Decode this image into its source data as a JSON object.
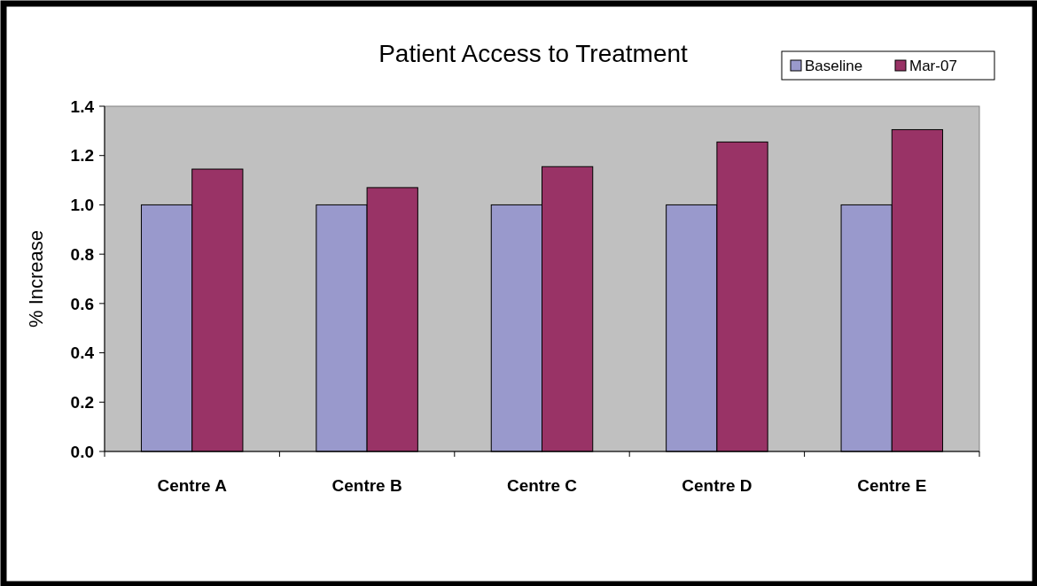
{
  "chart_data": {
    "type": "bar",
    "title": "Patient Access to Treatment",
    "ylabel": "% Increase",
    "categories": [
      "Centre A",
      "Centre B",
      "Centre C",
      "Centre D",
      "Centre E"
    ],
    "series": [
      {
        "name": "Baseline",
        "color": "#9999cc",
        "values": [
          1.0,
          1.0,
          1.0,
          1.0,
          1.0
        ]
      },
      {
        "name": "Mar-07",
        "color": "#993366",
        "values": [
          1.145,
          1.07,
          1.155,
          1.255,
          1.305
        ]
      }
    ],
    "ylim": [
      0,
      1.4
    ],
    "yticks": [
      {
        "value": 0,
        "label": "0.0"
      },
      {
        "value": 0.2,
        "label": "0.2"
      },
      {
        "value": 0.4,
        "label": "0.4"
      },
      {
        "value": 0.6,
        "label": "0.6"
      },
      {
        "value": 0.8,
        "label": "0.8"
      },
      {
        "value": 1,
        "label": "1.0"
      },
      {
        "value": 1.2,
        "label": "1.2"
      },
      {
        "value": 1.4,
        "label": "1.4"
      }
    ],
    "grid": false,
    "legend": "top right"
  }
}
